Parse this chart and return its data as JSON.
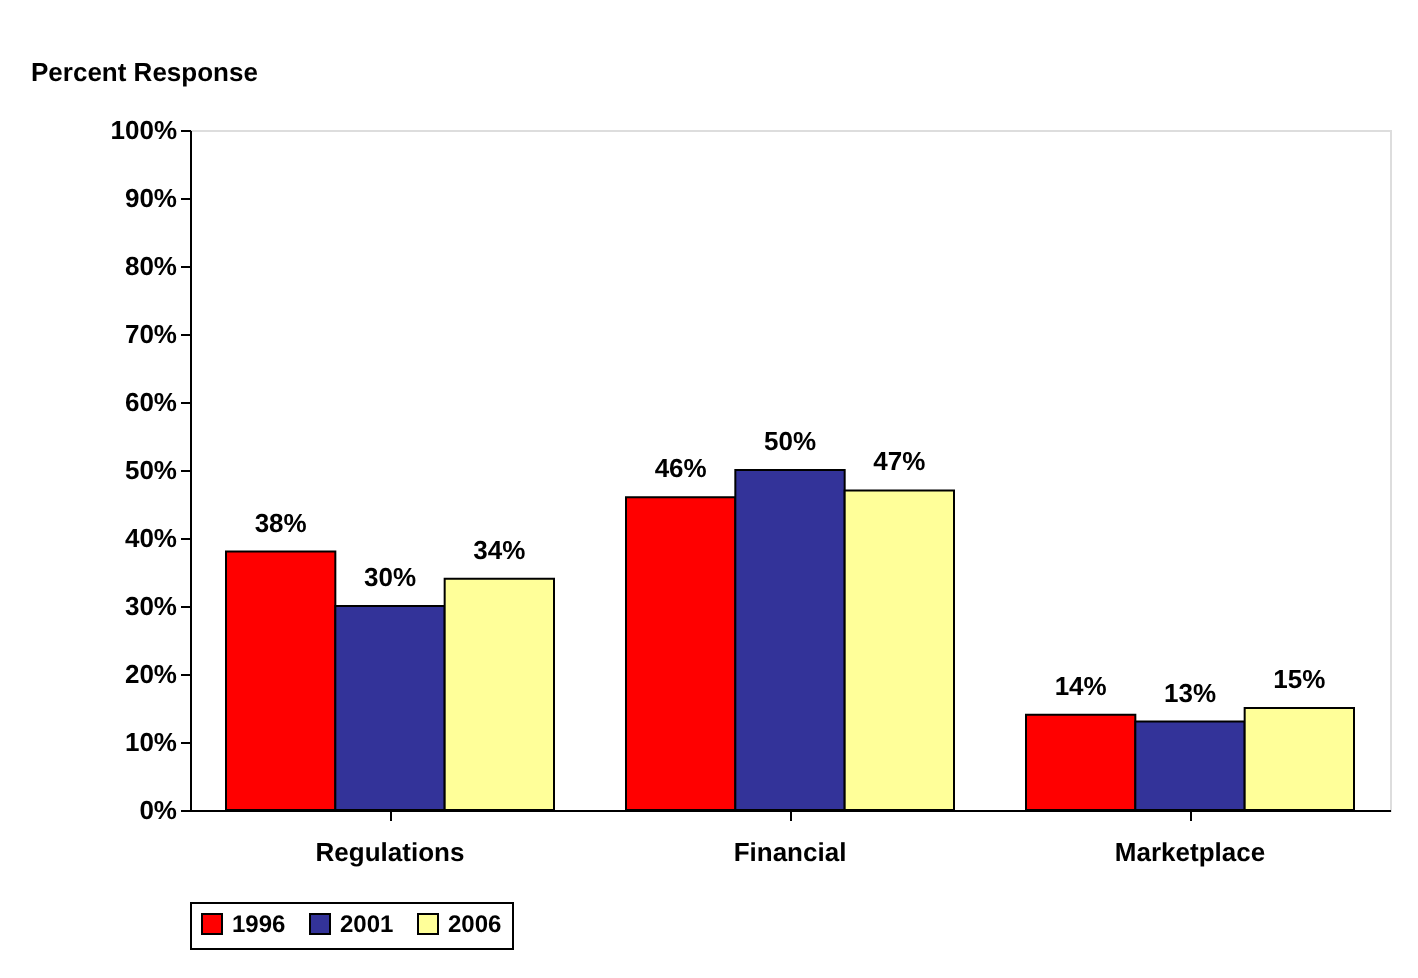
{
  "chart_data": {
    "type": "bar",
    "ylabel": "Percent Response",
    "categories": [
      "Regulations",
      "Financial",
      "Marketplace"
    ],
    "series": [
      {
        "name": "1996",
        "color": "#ff0000",
        "values": [
          38,
          46,
          14
        ],
        "value_labels": [
          "38%",
          "46%",
          "14%"
        ]
      },
      {
        "name": "2001",
        "color": "#333399",
        "values": [
          30,
          50,
          13
        ],
        "value_labels": [
          "30%",
          "50%",
          "13%"
        ]
      },
      {
        "name": "2006",
        "color": "#ffff99",
        "values": [
          34,
          47,
          15
        ],
        "value_labels": [
          "34%",
          "47%",
          "15%"
        ]
      }
    ],
    "ylim": [
      0,
      100
    ],
    "yticks": [
      {
        "value": 0,
        "label": "0%"
      },
      {
        "value": 10,
        "label": "10%"
      },
      {
        "value": 20,
        "label": "20%"
      },
      {
        "value": 30,
        "label": "30%"
      },
      {
        "value": 40,
        "label": "40%"
      },
      {
        "value": 50,
        "label": "50%"
      },
      {
        "value": 60,
        "label": "60%"
      },
      {
        "value": 70,
        "label": "70%"
      },
      {
        "value": 80,
        "label": "80%"
      },
      {
        "value": 90,
        "label": "90%"
      },
      {
        "value": 100,
        "label": "100%"
      }
    ],
    "grid": false,
    "legend": "bottom"
  }
}
